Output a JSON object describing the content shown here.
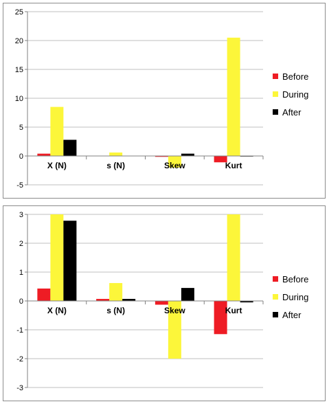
{
  "chart_data": [
    {
      "type": "bar",
      "categories": [
        "X (N)",
        "s (N)",
        "Skew",
        "Kurt"
      ],
      "series": [
        {
          "name": "Before",
          "values": [
            0.4,
            0.05,
            -0.15,
            -1.1
          ]
        },
        {
          "name": "During",
          "values": [
            8.5,
            0.6,
            -2.0,
            20.5
          ]
        },
        {
          "name": "After",
          "values": [
            2.8,
            0.05,
            0.4,
            -0.1
          ]
        }
      ],
      "ylim": [
        -5,
        25
      ],
      "yticks": [
        -5,
        0,
        5,
        10,
        15,
        20,
        25
      ],
      "grid": true,
      "legend": "right",
      "colors": [
        "#ee1c24",
        "#fcf63a",
        "#000000"
      ]
    },
    {
      "type": "bar",
      "categories": [
        "X (N)",
        "s (N)",
        "Skew",
        "Kurt"
      ],
      "series": [
        {
          "name": "Before",
          "values": [
            0.43,
            0.07,
            -0.13,
            -1.15
          ]
        },
        {
          "name": "During",
          "values": [
            3.0,
            0.62,
            -2.0,
            3.0
          ]
        },
        {
          "name": "After",
          "values": [
            2.78,
            0.07,
            0.45,
            -0.05
          ]
        }
      ],
      "ylim": [
        -3,
        3
      ],
      "yticks": [
        -3,
        -2,
        -1,
        0,
        1,
        2,
        3
      ],
      "grid": true,
      "legend": "right",
      "colors": [
        "#ee1c24",
        "#fcf63a",
        "#000000"
      ]
    }
  ]
}
